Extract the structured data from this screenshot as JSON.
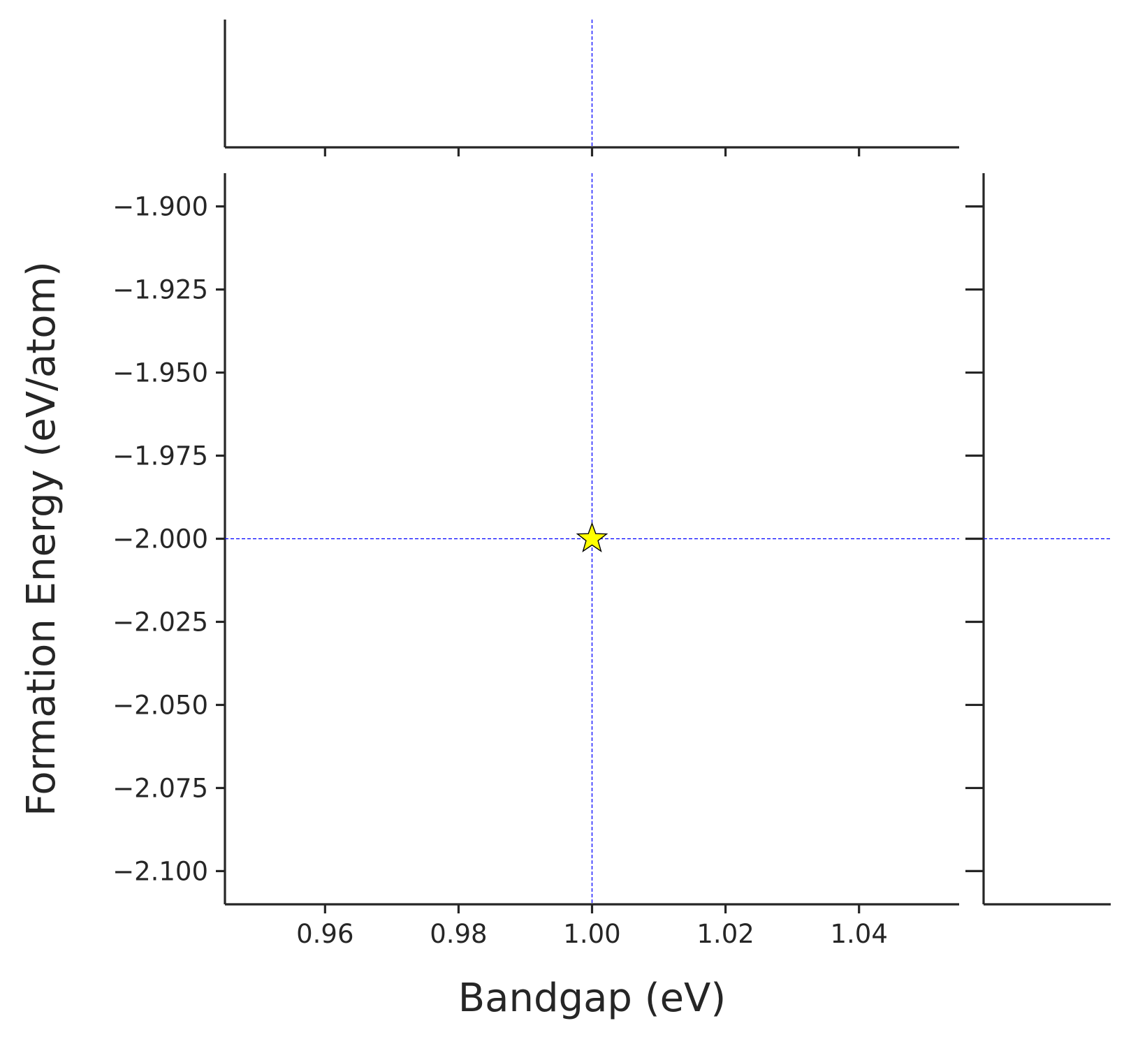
{
  "chart_data": {
    "type": "scatter",
    "title": "",
    "xlabel": "Bandgap (eV)",
    "ylabel": "Formation Energy (eV/atom)",
    "xlim": [
      0.945,
      1.055
    ],
    "ylim": [
      -2.11,
      -1.89
    ],
    "xticks": [
      0.96,
      0.98,
      1.0,
      1.02,
      1.04
    ],
    "xtick_labels": [
      "0.96",
      "0.98",
      "1.00",
      "1.02",
      "1.04"
    ],
    "yticks": [
      -1.9,
      -1.925,
      -1.95,
      -1.975,
      -2.0,
      -2.025,
      -2.05,
      -2.075,
      -2.1
    ],
    "ytick_labels": [
      "−1.900",
      "−1.925",
      "−1.950",
      "−1.975",
      "−2.000",
      "−2.025",
      "−2.050",
      "−2.075",
      "−2.100"
    ],
    "points": [
      {
        "x": 1.0,
        "y": -2.0,
        "marker": "star",
        "color": "#ffff00",
        "edgecolor": "#000000"
      }
    ],
    "reference_lines": {
      "x": 1.0,
      "y": -2.0,
      "color": "#0000ff",
      "style": "dashed"
    },
    "marginal_x": true,
    "marginal_y": true,
    "grid": false
  }
}
